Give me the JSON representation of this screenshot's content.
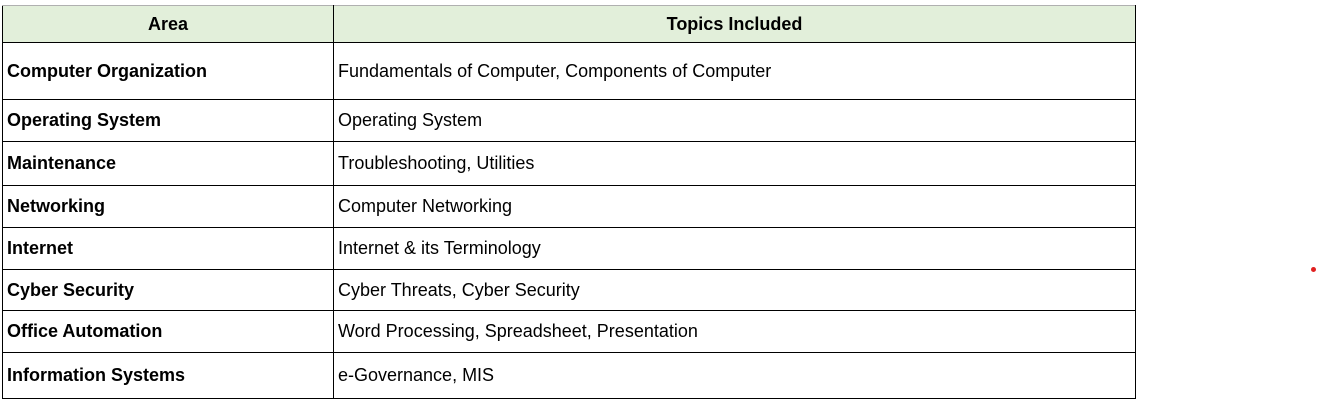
{
  "table": {
    "headers": [
      "Area",
      "Topics Included"
    ],
    "rows": [
      {
        "area": "Computer Organization",
        "topics": "Fundamentals of Computer, Components of Computer"
      },
      {
        "area": "Operating System",
        "topics": "Operating System"
      },
      {
        "area": "Maintenance",
        "topics": "Troubleshooting, Utilities"
      },
      {
        "area": "Networking",
        "topics": "Computer Networking"
      },
      {
        "area": "Internet",
        "topics": "Internet & its Terminology"
      },
      {
        "area": "Cyber Security",
        "topics": "Cyber Threats, Cyber Security"
      },
      {
        "area": "Office Automation",
        "topics": "Word Processing, Spreadsheet, Presentation"
      },
      {
        "area": "Information Systems",
        "topics": "e-Governance, MIS"
      }
    ]
  },
  "colors": {
    "header_bg": "#e2efda",
    "marker_dot": "#e02020"
  }
}
